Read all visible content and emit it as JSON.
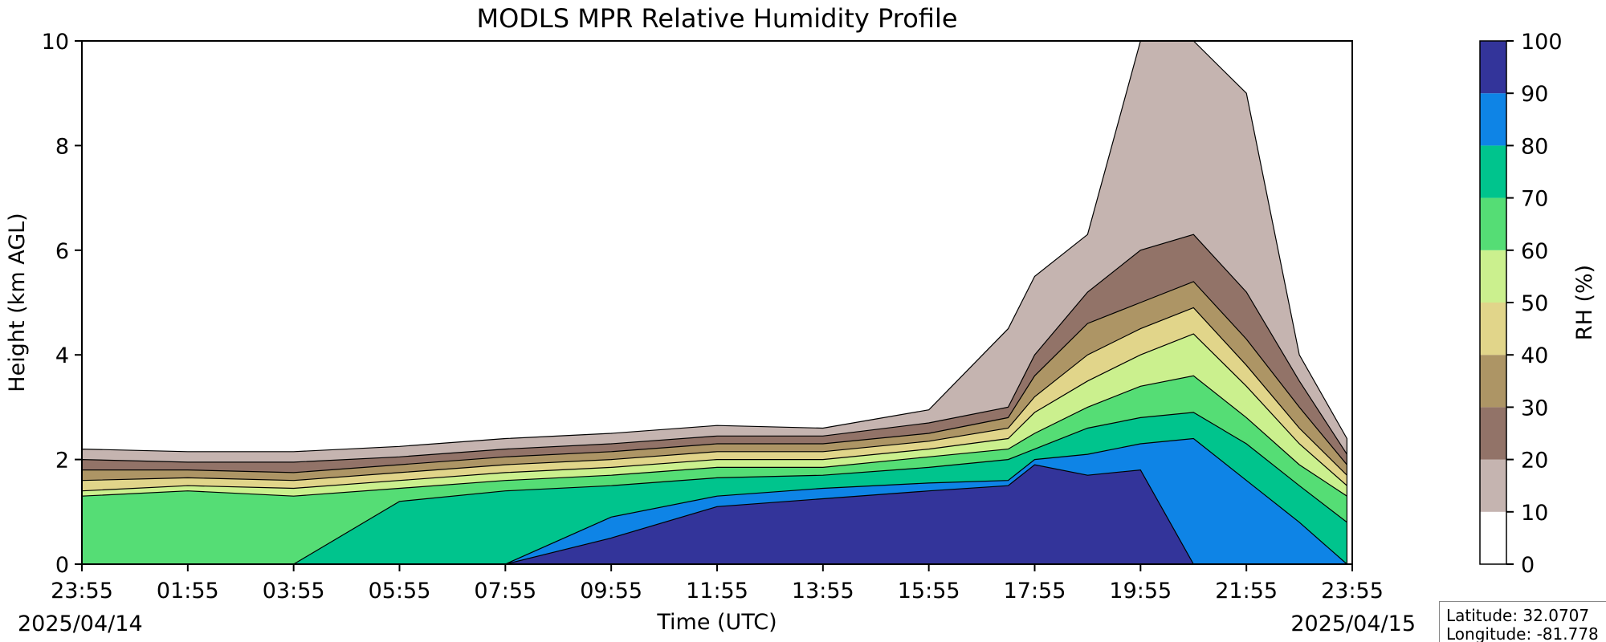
{
  "chart_data": {
    "type": "heatmap",
    "subtype": "filled-contour",
    "title": "MODLS MPR Relative Humidity Profile",
    "xlabel": "Time (UTC)",
    "ylabel": "Height (km AGL)",
    "xticks": [
      "23:55",
      "01:55",
      "03:55",
      "05:55",
      "07:55",
      "09:55",
      "11:55",
      "13:55",
      "15:55",
      "17:55",
      "19:55",
      "21:55",
      "23:55"
    ],
    "start_date": "2025/04/14",
    "end_date": "2025/04/15",
    "ylim": [
      0,
      10
    ],
    "yticks": [
      0,
      2,
      4,
      6,
      8,
      10
    ],
    "colorbar": {
      "label": "RH (%)",
      "ticks": [
        0,
        10,
        20,
        30,
        40,
        50,
        60,
        70,
        80,
        90,
        100
      ],
      "levels": [
        {
          "range": [
            0,
            10
          ],
          "color": "#ffffff"
        },
        {
          "range": [
            10,
            20
          ],
          "color": "#c5b4b0"
        },
        {
          "range": [
            20,
            30
          ],
          "color": "#927368"
        },
        {
          "range": [
            30,
            40
          ],
          "color": "#ad9565"
        },
        {
          "range": [
            40,
            50
          ],
          "color": "#e1d58a"
        },
        {
          "range": [
            50,
            60
          ],
          "color": "#cbf08e"
        },
        {
          "range": [
            60,
            70
          ],
          "color": "#55dd75"
        },
        {
          "range": [
            70,
            80
          ],
          "color": "#00c48d"
        },
        {
          "range": [
            80,
            90
          ],
          "color": "#0e84e6"
        },
        {
          "range": [
            90,
            100
          ],
          "color": "#33349a"
        }
      ]
    },
    "contour_tops_km": {
      "hours_since_start": [
        0,
        2,
        4,
        6,
        8,
        10,
        12,
        14,
        16,
        17.5,
        18,
        19,
        20,
        21,
        22,
        23,
        23.9
      ],
      "rh_10": [
        2.2,
        2.15,
        2.15,
        2.25,
        2.4,
        2.5,
        2.65,
        2.6,
        2.95,
        4.5,
        5.5,
        6.3,
        10,
        10,
        9.0,
        4.0,
        2.4
      ],
      "rh_20": [
        2.0,
        1.95,
        1.95,
        2.05,
        2.2,
        2.3,
        2.45,
        2.45,
        2.7,
        3.0,
        4.0,
        5.2,
        6.0,
        6.3,
        5.2,
        3.5,
        2.1
      ],
      "rh_30": [
        1.8,
        1.8,
        1.75,
        1.9,
        2.05,
        2.15,
        2.3,
        2.3,
        2.5,
        2.8,
        3.6,
        4.6,
        5.0,
        5.4,
        4.3,
        3.0,
        1.9
      ],
      "rh_40": [
        1.6,
        1.65,
        1.6,
        1.75,
        1.9,
        2.0,
        2.15,
        2.15,
        2.35,
        2.6,
        3.2,
        4.0,
        4.5,
        4.9,
        3.8,
        2.6,
        1.7
      ],
      "rh_50": [
        1.4,
        1.5,
        1.45,
        1.6,
        1.75,
        1.85,
        2.0,
        2.0,
        2.2,
        2.4,
        2.9,
        3.5,
        4.0,
        4.4,
        3.4,
        2.3,
        1.5
      ],
      "rh_60": [
        1.3,
        1.4,
        1.3,
        1.45,
        1.6,
        1.7,
        1.85,
        1.85,
        2.05,
        2.2,
        2.5,
        3.0,
        3.4,
        3.6,
        2.8,
        1.9,
        1.3
      ],
      "rh_70": [
        0,
        0,
        0,
        1.2,
        1.4,
        1.5,
        1.65,
        1.7,
        1.85,
        2.0,
        2.2,
        2.6,
        2.8,
        2.9,
        2.3,
        1.5,
        0.8
      ],
      "rh_80": [
        0,
        0,
        0,
        0,
        0,
        0.9,
        1.3,
        1.45,
        1.55,
        1.6,
        2.0,
        2.1,
        2.3,
        2.4,
        1.6,
        0.8,
        0
      ],
      "rh_90": [
        0,
        0,
        0,
        0,
        0,
        0.5,
        1.1,
        1.25,
        1.4,
        1.5,
        1.9,
        1.7,
        1.8,
        0,
        0,
        0,
        0
      ]
    }
  },
  "info": {
    "latitude": "Latitude: 32.0707",
    "longitude": "Longitude: -81.778"
  }
}
